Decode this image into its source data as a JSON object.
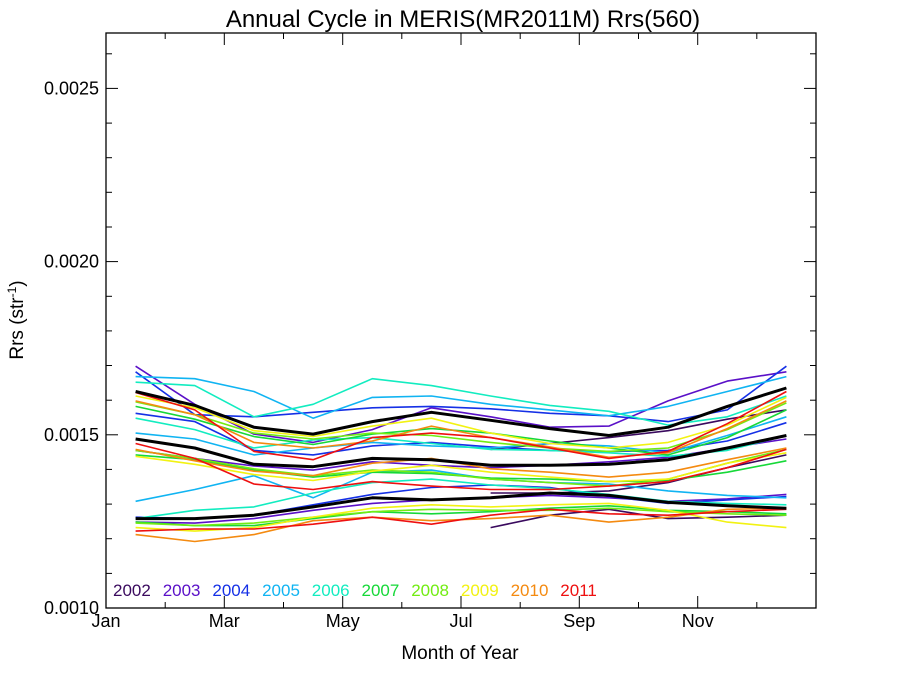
{
  "chart_data": {
    "type": "line",
    "title": "Annual Cycle in MERIS(MR2011M) Rrs(560)",
    "xlabel": "Month of Year",
    "ylabel": "Rrs (str",
    "ylabel_sup": "-1",
    "ylabel_close": ")",
    "xlim": [
      0,
      12
    ],
    "ylim": [
      0.001,
      0.00266
    ],
    "x_ticks": [
      {
        "value": 0,
        "label": "Jan"
      },
      {
        "value": 2,
        "label": "Mar"
      },
      {
        "value": 4,
        "label": "May"
      },
      {
        "value": 6,
        "label": "Jul"
      },
      {
        "value": 8,
        "label": "Sep"
      },
      {
        "value": 10,
        "label": "Nov"
      }
    ],
    "y_ticks": [
      {
        "value": 0.001,
        "label": "0.0010"
      },
      {
        "value": 0.0015,
        "label": "0.0015"
      },
      {
        "value": 0.002,
        "label": "0.0020"
      },
      {
        "value": 0.0025,
        "label": "0.0025"
      }
    ],
    "grid": false,
    "legend_position": "bottom-left",
    "legend": [
      {
        "label": "2002",
        "color": "#3a0a5e"
      },
      {
        "label": "2003",
        "color": "#5a10c8"
      },
      {
        "label": "2004",
        "color": "#1530e6"
      },
      {
        "label": "2005",
        "color": "#10b4f2"
      },
      {
        "label": "2006",
        "color": "#12ecc0"
      },
      {
        "label": "2007",
        "color": "#16d838"
      },
      {
        "label": "2008",
        "color": "#72ec12"
      },
      {
        "label": "2009",
        "color": "#f2f212"
      },
      {
        "label": "2010",
        "color": "#f48a10"
      },
      {
        "label": "2011",
        "color": "#ee1010"
      }
    ],
    "x": [
      0.5,
      1.5,
      2.5,
      3.5,
      4.5,
      5.5,
      6.5,
      7.5,
      8.5,
      9.5,
      10.5,
      11.5
    ],
    "series": [
      {
        "color": "#3a0a5e",
        "x": [
          6.5,
          7.5,
          8.5,
          9.5,
          10.5,
          11.5
        ],
        "values": [
          0.001232,
          0.001268,
          0.001285,
          0.001258,
          0.001262,
          0.001268
        ]
      },
      {
        "color": "#3a0a5e",
        "x": [
          6.5,
          7.5,
          8.5,
          9.5,
          10.5,
          11.5
        ],
        "values": [
          0.001332,
          0.001332,
          0.001338,
          0.001362,
          0.001405,
          0.001442
        ]
      },
      {
        "color": "#3a0a5e",
        "x": [
          6.5,
          7.5,
          8.5,
          9.5,
          10.5,
          11.5
        ],
        "values": [
          0.001458,
          0.001475,
          0.001492,
          0.001512,
          0.001545,
          0.001572
        ]
      },
      {
        "color": "#5a10c8",
        "values": [
          0.001455,
          0.001432,
          0.00141,
          0.001398,
          0.001422,
          0.001412,
          0.001405,
          0.001412,
          0.001422,
          0.001435,
          0.001462,
          0.001488
        ]
      },
      {
        "color": "#5a10c8",
        "values": [
          0.001698,
          0.001588,
          0.001502,
          0.001478,
          0.001515,
          0.001578,
          0.001552,
          0.001522,
          0.001525,
          0.001598,
          0.001655,
          0.001682
        ]
      },
      {
        "color": "#5a10c8",
        "values": [
          0.001248,
          0.001245,
          0.001258,
          0.001282,
          0.001302,
          0.001312,
          0.001318,
          0.001325,
          0.001318,
          0.001308,
          0.001315,
          0.001328
        ]
      },
      {
        "color": "#1530e6",
        "values": [
          0.001682,
          0.001558,
          0.001552,
          0.001565,
          0.001578,
          0.001582,
          0.001575,
          0.001562,
          0.001555,
          0.001538,
          0.001572,
          0.001698
        ]
      },
      {
        "color": "#1530e6",
        "values": [
          0.001562,
          0.001538,
          0.001455,
          0.001442,
          0.001468,
          0.001478,
          0.001465,
          0.001455,
          0.001452,
          0.001455,
          0.001482,
          0.001535
        ]
      },
      {
        "color": "#1530e6",
        "values": [
          0.001262,
          0.001258,
          0.001268,
          0.001298,
          0.001328,
          0.001348,
          0.001355,
          0.001348,
          0.001322,
          0.001302,
          0.001312,
          0.001322
        ]
      },
      {
        "color": "#10b4f2",
        "values": [
          0.001668,
          0.001662,
          0.001625,
          0.001548,
          0.001608,
          0.001612,
          0.001588,
          0.001572,
          0.001555,
          0.001582,
          0.001625,
          0.001668
        ]
      },
      {
        "color": "#10b4f2",
        "values": [
          0.001505,
          0.001488,
          0.001442,
          0.001462,
          0.001478,
          0.001468,
          0.001462,
          0.001475,
          0.001468,
          0.001448,
          0.001498,
          0.001552
        ]
      },
      {
        "color": "#10b4f2",
        "values": [
          0.001308,
          0.001342,
          0.001382,
          0.001318,
          0.001392,
          0.001398,
          0.001372,
          0.001362,
          0.001358,
          0.001338,
          0.001325,
          0.001318
        ]
      },
      {
        "color": "#12ecc0",
        "values": [
          0.001652,
          0.001642,
          0.001552,
          0.001588,
          0.001662,
          0.001642,
          0.001612,
          0.001585,
          0.001568,
          0.001528,
          0.001552,
          0.001612
        ]
      },
      {
        "color": "#12ecc0",
        "values": [
          0.001548,
          0.001515,
          0.001462,
          0.001485,
          0.001492,
          0.001475,
          0.001458,
          0.001455,
          0.001448,
          0.001438,
          0.001455,
          0.001498
        ]
      },
      {
        "color": "#12ecc0",
        "values": [
          0.001258,
          0.001282,
          0.001292,
          0.001332,
          0.001362,
          0.001372,
          0.001355,
          0.001345,
          0.001328,
          0.001308,
          0.001302,
          0.001298
        ]
      },
      {
        "color": "#16d838",
        "values": [
          0.001582,
          0.001545,
          0.001495,
          0.001472,
          0.001502,
          0.001518,
          0.001505,
          0.001482,
          0.001462,
          0.001442,
          0.001492,
          0.001572
        ]
      },
      {
        "color": "#16d838",
        "values": [
          0.001442,
          0.001428,
          0.001398,
          0.001378,
          0.001392,
          0.001388,
          0.001375,
          0.001372,
          0.001365,
          0.001368,
          0.001392,
          0.001425
        ]
      },
      {
        "color": "#16d838",
        "values": [
          0.001248,
          0.001238,
          0.001238,
          0.001258,
          0.001278,
          0.001272,
          0.001278,
          0.001288,
          0.001295,
          0.001282,
          0.001278,
          0.001272
        ]
      },
      {
        "color": "#72ec12",
        "values": [
          0.001595,
          0.001558,
          0.001505,
          0.001488,
          0.001505,
          0.001498,
          0.001478,
          0.001462,
          0.001452,
          0.001462,
          0.001515,
          0.001592
        ]
      },
      {
        "color": "#72ec12",
        "values": [
          0.001455,
          0.001432,
          0.001402,
          0.001382,
          0.001398,
          0.001392,
          0.001372,
          0.001362,
          0.001352,
          0.001372,
          0.001418,
          0.001458
        ]
      },
      {
        "color": "#72ec12",
        "values": [
          0.001245,
          0.001238,
          0.001245,
          0.001262,
          0.001278,
          0.001285,
          0.001282,
          0.001282,
          0.001288,
          0.001278,
          0.001272,
          0.001268
        ]
      },
      {
        "color": "#f2f212",
        "values": [
          0.001612,
          0.001578,
          0.001512,
          0.001495,
          0.001525,
          0.001548,
          0.001505,
          0.001475,
          0.001462,
          0.001478,
          0.001528,
          0.001608
        ]
      },
      {
        "color": "#f2f212",
        "values": [
          0.001438,
          0.001415,
          0.001385,
          0.001368,
          0.001395,
          0.001412,
          0.001392,
          0.001378,
          0.001365,
          0.001372,
          0.001418,
          0.001448
        ]
      },
      {
        "color": "#f2f212",
        "values": [
          0.001232,
          0.001222,
          0.001232,
          0.001262,
          0.001288,
          0.001298,
          0.001292,
          0.001298,
          0.001302,
          0.001282,
          0.001248,
          0.001232
        ]
      },
      {
        "color": "#f48a10",
        "values": [
          0.001598,
          0.001558,
          0.001478,
          0.001462,
          0.001482,
          0.001525,
          0.001492,
          0.001465,
          0.001435,
          0.001448,
          0.001518,
          0.001598
        ]
      },
      {
        "color": "#f48a10",
        "values": [
          0.001458,
          0.001425,
          0.001395,
          0.001382,
          0.001418,
          0.001432,
          0.001402,
          0.001392,
          0.001378,
          0.001392,
          0.001428,
          0.001462
        ]
      },
      {
        "color": "#f48a10",
        "values": [
          0.001212,
          0.001192,
          0.001212,
          0.001252,
          0.001262,
          0.001252,
          0.001258,
          0.001268,
          0.001248,
          0.001262,
          0.001285,
          0.001288
        ]
      },
      {
        "color": "#ee1010",
        "values": [
          0.001622,
          0.001572,
          0.001452,
          0.001428,
          0.001492,
          0.001505,
          0.001492,
          0.001462,
          0.001432,
          0.001452,
          0.001532,
          0.001625
        ]
      },
      {
        "color": "#ee1010",
        "values": [
          0.001475,
          0.001432,
          0.001358,
          0.001342,
          0.001365,
          0.001352,
          0.001342,
          0.001342,
          0.001352,
          0.001365,
          0.001405,
          0.001458
        ]
      },
      {
        "color": "#ee1010",
        "values": [
          0.001222,
          0.001228,
          0.001228,
          0.001242,
          0.001262,
          0.001242,
          0.001268,
          0.001285,
          0.001272,
          0.001268,
          0.001278,
          0.001285
        ]
      },
      {
        "color": "#000000",
        "width": 3,
        "values": [
          0.001625,
          0.001585,
          0.001522,
          0.001502,
          0.001538,
          0.001565,
          0.001542,
          0.001518,
          0.001498,
          0.001522,
          0.001582,
          0.001635
        ]
      },
      {
        "color": "#000000",
        "width": 3,
        "values": [
          0.001488,
          0.001462,
          0.001415,
          0.001408,
          0.001432,
          0.001428,
          0.001412,
          0.001412,
          0.001415,
          0.001428,
          0.001462,
          0.001498
        ]
      },
      {
        "color": "#000000",
        "width": 3,
        "values": [
          0.001258,
          0.001258,
          0.001268,
          0.001292,
          0.001318,
          0.001312,
          0.001318,
          0.001332,
          0.001325,
          0.001305,
          0.001295,
          0.001288
        ]
      }
    ]
  }
}
